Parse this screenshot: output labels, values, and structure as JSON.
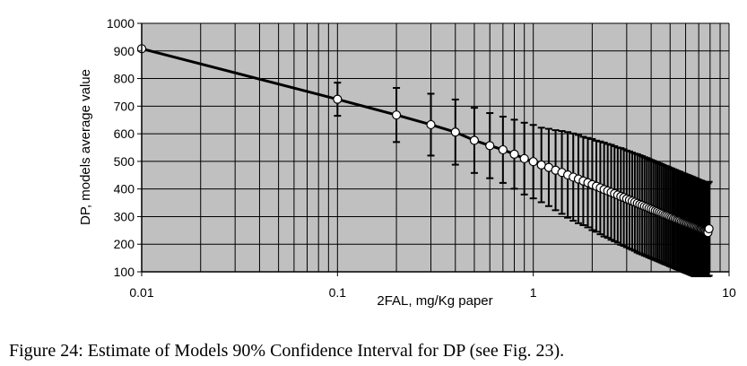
{
  "caption": "Figure 24: Estimate of Models 90% Confidence Interval for DP (see Fig. 23).",
  "chart_data": {
    "type": "line",
    "xlabel": "2FAL, mg/Kg paper",
    "ylabel": "DP, models average  value",
    "x_scale": "log",
    "xlim": [
      0.01,
      10
    ],
    "ylim": [
      100,
      1000
    ],
    "x_ticks": [
      "0.01",
      "0.1",
      "1",
      "10"
    ],
    "y_ticks": [
      "100",
      "200",
      "300",
      "400",
      "500",
      "600",
      "700",
      "800",
      "900",
      "1000"
    ],
    "grid": true,
    "plot_background": "#c0c0c0",
    "series": [
      {
        "x": [
          0.01,
          0.1,
          0.2,
          0.3,
          0.4,
          0.5,
          0.6,
          0.7,
          0.8,
          0.9,
          1.0,
          1.1,
          1.2,
          1.3,
          1.4,
          1.5,
          1.6,
          1.7,
          1.8,
          1.9,
          2.0,
          2.1,
          2.2,
          2.3,
          2.4,
          2.5,
          2.6,
          2.7,
          2.8,
          2.9,
          3.0,
          3.1,
          3.2,
          3.3,
          3.4,
          3.5,
          3.6,
          3.7,
          3.8,
          3.9,
          4.0,
          4.1,
          4.2,
          4.3,
          4.4,
          4.5,
          4.6,
          4.7,
          4.8,
          4.9,
          5.0,
          5.1,
          5.2,
          5.3,
          5.4,
          5.5,
          5.6,
          5.7,
          5.8,
          5.9,
          6.0,
          6.1,
          6.2,
          6.3,
          6.4,
          6.5,
          6.6,
          6.7,
          6.8,
          6.9,
          7.0,
          7.1,
          7.2,
          7.3,
          7.4,
          7.5,
          7.6,
          7.7,
          7.8,
          7.9
        ],
        "y": [
          908,
          725,
          668,
          633,
          606,
          576,
          557,
          542,
          526,
          510,
          499,
          487,
          478,
          468,
          460,
          451,
          443,
          436,
          429,
          423,
          416,
          410,
          404,
          398,
          393,
          388,
          383,
          378,
          373,
          369,
          364,
          360,
          356,
          352,
          348,
          344,
          341,
          337,
          334,
          330,
          327,
          324,
          321,
          318,
          315,
          312,
          309,
          306,
          304,
          301,
          298,
          296,
          293,
          291,
          288,
          286,
          284,
          281,
          279,
          277,
          275,
          273,
          271,
          269,
          267,
          265,
          263,
          261,
          259,
          257,
          255,
          253,
          252,
          250,
          248,
          247,
          245,
          243,
          242,
          256
        ],
        "half_width": [
          0,
          60,
          98,
          112,
          118,
          118,
          118,
          120,
          125,
          130,
          133,
          135,
          140,
          145,
          150,
          155,
          158,
          160,
          160,
          162,
          165,
          165,
          168,
          170,
          170,
          172,
          172,
          172,
          175,
          175,
          175,
          176,
          176,
          176,
          178,
          178,
          178,
          178,
          178,
          178,
          178,
          178,
          178,
          178,
          178,
          178,
          178,
          178,
          178,
          178,
          178,
          178,
          178,
          178,
          178,
          178,
          178,
          178,
          178,
          178,
          178,
          178,
          178,
          178,
          178,
          178,
          178,
          178,
          178,
          178,
          178,
          178,
          178,
          178,
          178,
          178,
          178,
          178,
          178,
          170
        ]
      }
    ]
  }
}
